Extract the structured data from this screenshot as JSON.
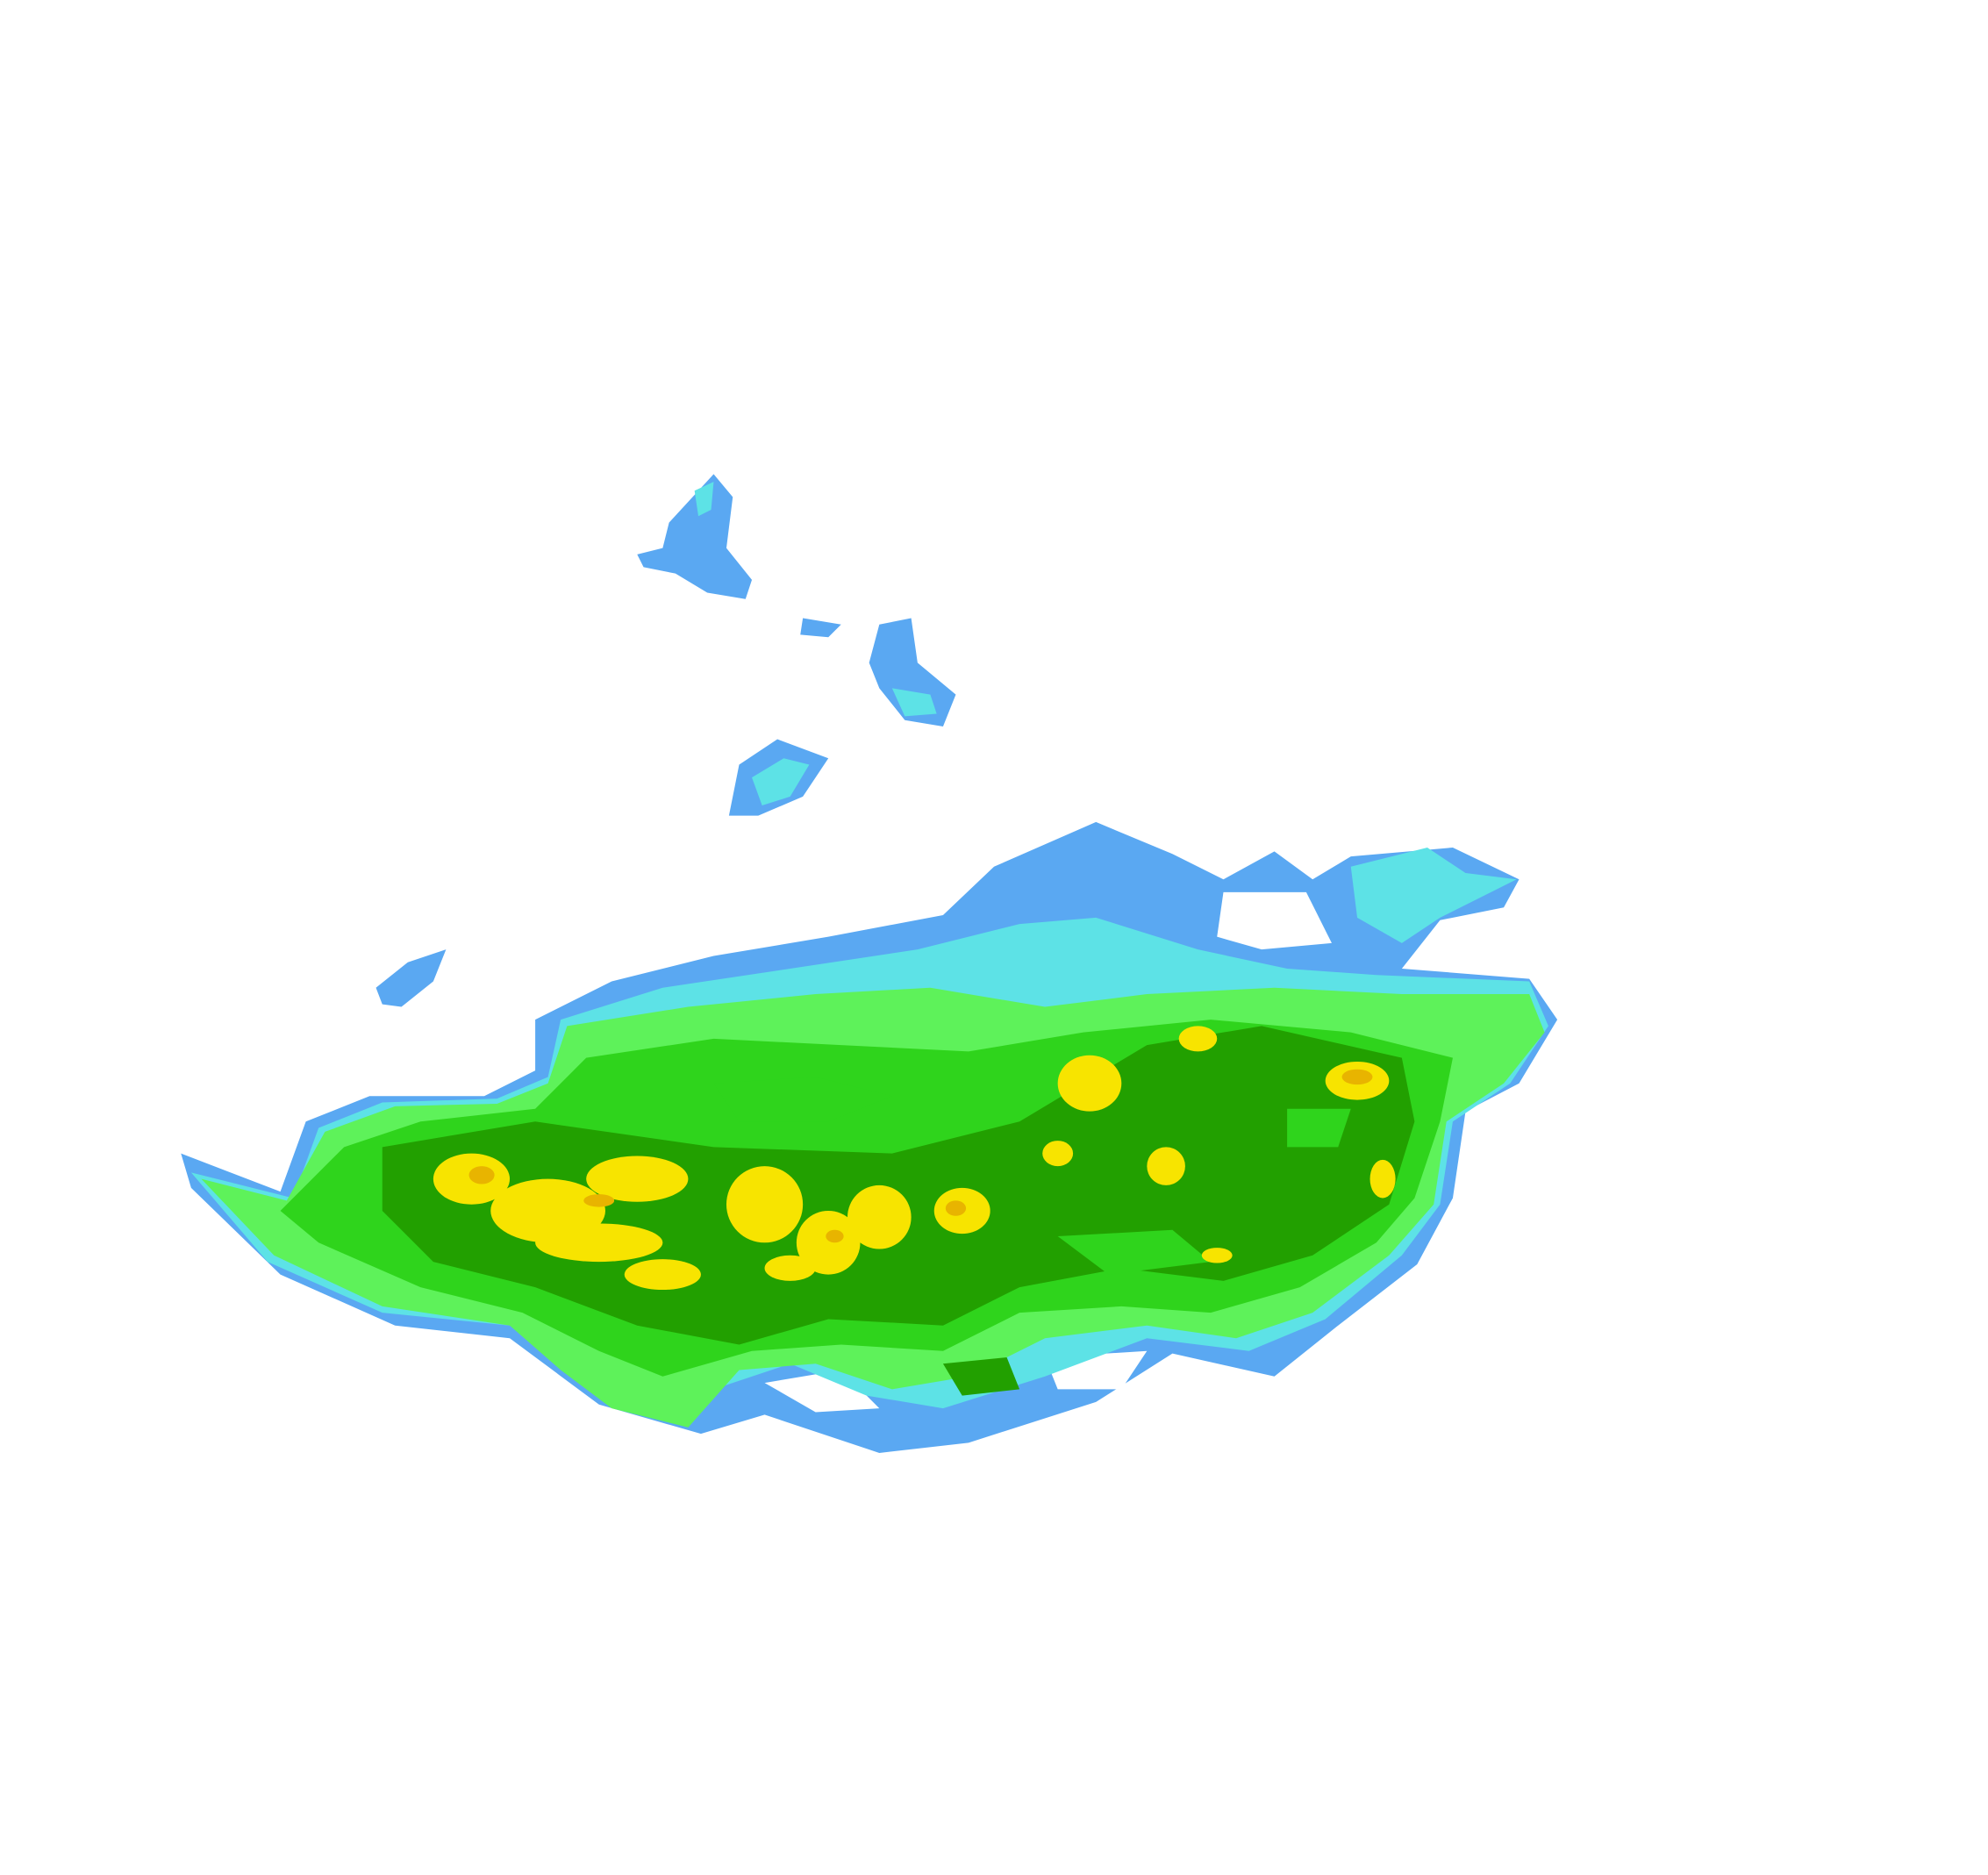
{
  "radar": {
    "palette": {
      "light_blue": "#5aa8f2",
      "cyan": "#5de2e6",
      "light_green": "#5ef25a",
      "green": "#2fd41c",
      "dark_green": "#22a000",
      "yellow": "#f7e400",
      "orange": "#e8b400"
    }
  }
}
